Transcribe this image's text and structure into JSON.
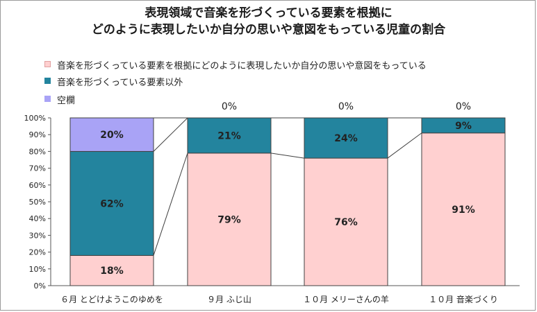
{
  "chart_data": {
    "type": "bar",
    "stacked": true,
    "title": "表現領域で音楽を形づくっている要素を根拠に\nどのように表現したいか自分の思いや意図をもっている児童の割合",
    "categories": [
      "６月 とどけようこのゆめを",
      "９月 ふじ山",
      "１０月 メリーさんの羊",
      "１０月 音楽づくり"
    ],
    "series": [
      {
        "name": "音楽を形づくっている要素を根拠にどのように表現したいか自分の思いや意図をもっている",
        "values": [
          18,
          79,
          76,
          91
        ],
        "labels": [
          "18%",
          "79%",
          "76%",
          "91%"
        ],
        "color": "#ffd0d0"
      },
      {
        "name": "音楽を形づくっている要素以外",
        "values": [
          62,
          21,
          24,
          9
        ],
        "labels": [
          "62%",
          "21%",
          "24%",
          "9%"
        ],
        "color": "#23849e"
      },
      {
        "name": "空欄",
        "values": [
          20,
          0,
          0,
          0
        ],
        "labels": [
          "20%",
          "0%",
          "0%",
          "0%"
        ],
        "color": "#a9a3f6"
      }
    ],
    "ylim": [
      0,
      100
    ],
    "yticks": [
      "0%",
      "10%",
      "20%",
      "30%",
      "40%",
      "50%",
      "60%",
      "70%",
      "80%",
      "90%",
      "100%"
    ],
    "legend_position": "top-left",
    "series_lines": true,
    "grid": false
  }
}
